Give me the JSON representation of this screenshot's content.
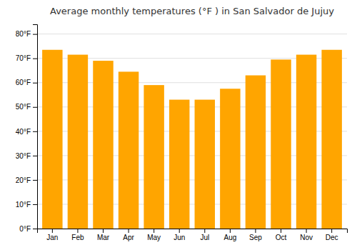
{
  "chart_data": {
    "type": "bar",
    "title": "Average monthly temperatures (°F ) in San Salvador de Jujuy",
    "categories": [
      "Jan",
      "Feb",
      "Mar",
      "Apr",
      "May",
      "Jun",
      "Jul",
      "Aug",
      "Sep",
      "Oct",
      "Nov",
      "Dec"
    ],
    "values": [
      73.5,
      71.5,
      69.0,
      64.5,
      59.0,
      53.0,
      53.0,
      57.5,
      63.0,
      69.5,
      71.5,
      73.5
    ],
    "color": "#FFA500",
    "ylim": [
      0,
      84
    ],
    "yticks": [
      {
        "value": 0,
        "label": "0°F"
      },
      {
        "value": 10,
        "label": "10°F"
      },
      {
        "value": 20,
        "label": "20°F"
      },
      {
        "value": 30,
        "label": "30°F"
      },
      {
        "value": 40,
        "label": "40°F"
      },
      {
        "value": 50,
        "label": "50°F"
      },
      {
        "value": 60,
        "label": "60°F"
      },
      {
        "value": 70,
        "label": "70°F"
      },
      {
        "value": 80,
        "label": "80°F"
      }
    ],
    "grid": true
  }
}
